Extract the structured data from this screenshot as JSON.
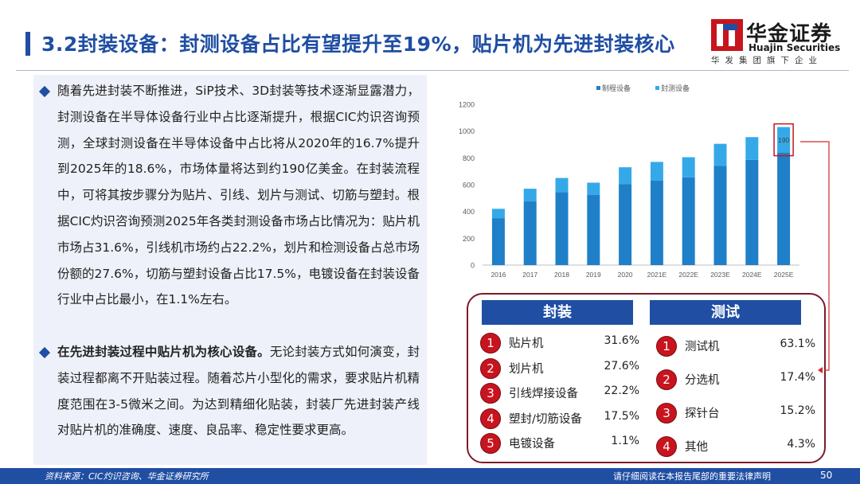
{
  "header": {
    "title": "3.2封装设备：封测设备占比有望提升至19%，贴片机为先进封装核心",
    "logo_cn": "华金证券",
    "logo_en": "Huajin Securities",
    "tagline": "华发集团旗下企业"
  },
  "text": {
    "p1": "随着先进封装不断推进，SiP技术、3D封装等技术逐渐显露潜力，封测设备在半导体设备行业中占比逐渐提升，根据CIC灼识咨询预测，全球封测设备在半导体设备中占比将从2020年的16.7%提升到2025年的18.6%，市场体量将达到约190亿美金。在封装流程中，可将其按步骤分为贴片、引线、划片与测试、切筋与塑封。根据CIC灼识咨询预测2025年各类封测设备市场占比情况为：贴片机市场占31.6%，引线机市场约占22.2%，划片和检测设备占总市场份额的27.6%，切筋与塑封设备占比17.5%，电镀设备在封装设备行业中占比最小，在1.1%左右。",
    "p2_bold": "在先进封装过程中贴片机为核心设备。",
    "p2_rest": "无论封装方式如何演变，封装过程都离不开贴装过程。随着芯片小型化的需求，要求贴片机精度范围在3-5微米之间。为达到精细化贴装，封装厂先进封装产线对贴片机的准确度、速度、良品率、稳定性要求更高。"
  },
  "chart_data": {
    "type": "bar",
    "stacked": true,
    "categories": [
      "2016",
      "2017",
      "2018",
      "2019",
      "2020",
      "2021E",
      "2022E",
      "2023E",
      "2024E",
      "2025E"
    ],
    "series": [
      {
        "name": "制程设备",
        "color": "#1f7fc8",
        "values": [
          350,
          475,
          545,
          525,
          605,
          630,
          655,
          740,
          785,
          840
        ]
      },
      {
        "name": "封测设备",
        "color": "#35a9e8",
        "values": [
          70,
          95,
          105,
          90,
          125,
          140,
          150,
          165,
          170,
          190
        ]
      }
    ],
    "ylim": [
      0,
      1200
    ],
    "yticks": [
      "0",
      "200",
      "400",
      "600",
      "800",
      "1000",
      "1200"
    ],
    "legend": "top",
    "annotation": "190"
  },
  "packaging": {
    "header": "封装",
    "items": [
      {
        "num": "1",
        "label": "贴片机",
        "pct": "31.6%"
      },
      {
        "num": "2",
        "label": "划片机",
        "pct": "27.6%"
      },
      {
        "num": "3",
        "label": "引线焊接设备",
        "pct": "22.2%"
      },
      {
        "num": "4",
        "label": "塑封/切筋设备",
        "pct": "17.5%"
      },
      {
        "num": "5",
        "label": "电镀设备",
        "pct": "1.1%"
      }
    ]
  },
  "testing": {
    "header": "测试",
    "items": [
      {
        "num": "1",
        "label": "测试机",
        "pct": "63.1%"
      },
      {
        "num": "2",
        "label": "分选机",
        "pct": "17.4%"
      },
      {
        "num": "3",
        "label": "探针台",
        "pct": "15.2%"
      },
      {
        "num": "4",
        "label": "其他",
        "pct": "4.3%"
      }
    ]
  },
  "footer": {
    "source": "资料来源：CIC灼识咨询、华金证券研究所",
    "disclaimer": "请仔细阅读在本报告尾部的重要法律声明",
    "page": "50"
  },
  "colors": {
    "brand": "#1f4ea3",
    "accent_red": "#c8141e",
    "frame": "#7a1c2a"
  }
}
